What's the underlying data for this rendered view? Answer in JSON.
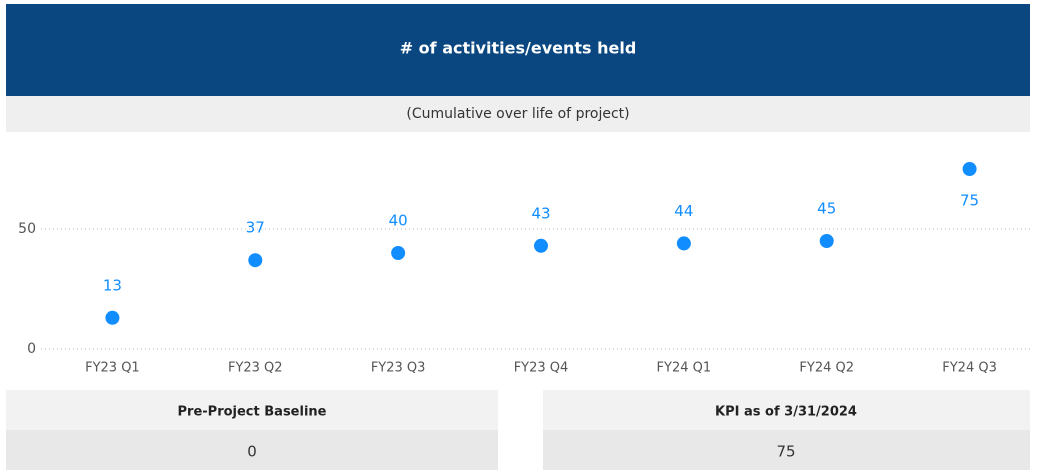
{
  "chart_data": {
    "type": "scatter",
    "title": "# of activities/events held",
    "subtitle": "(Cumulative over life of project)",
    "categories": [
      "FY23 Q1",
      "FY23 Q2",
      "FY23 Q3",
      "FY23 Q4",
      "FY24 Q1",
      "FY24 Q2",
      "FY24 Q3"
    ],
    "values": [
      13,
      37,
      40,
      43,
      44,
      45,
      75
    ],
    "color": "#118dff",
    "ylim": [
      0,
      80
    ],
    "yticks": [
      0,
      50
    ],
    "grid": true
  },
  "cards": [
    {
      "title": "Pre-Project Baseline",
      "value": "0"
    },
    {
      "title": "KPI as of 3/31/2024",
      "value": "75"
    }
  ]
}
